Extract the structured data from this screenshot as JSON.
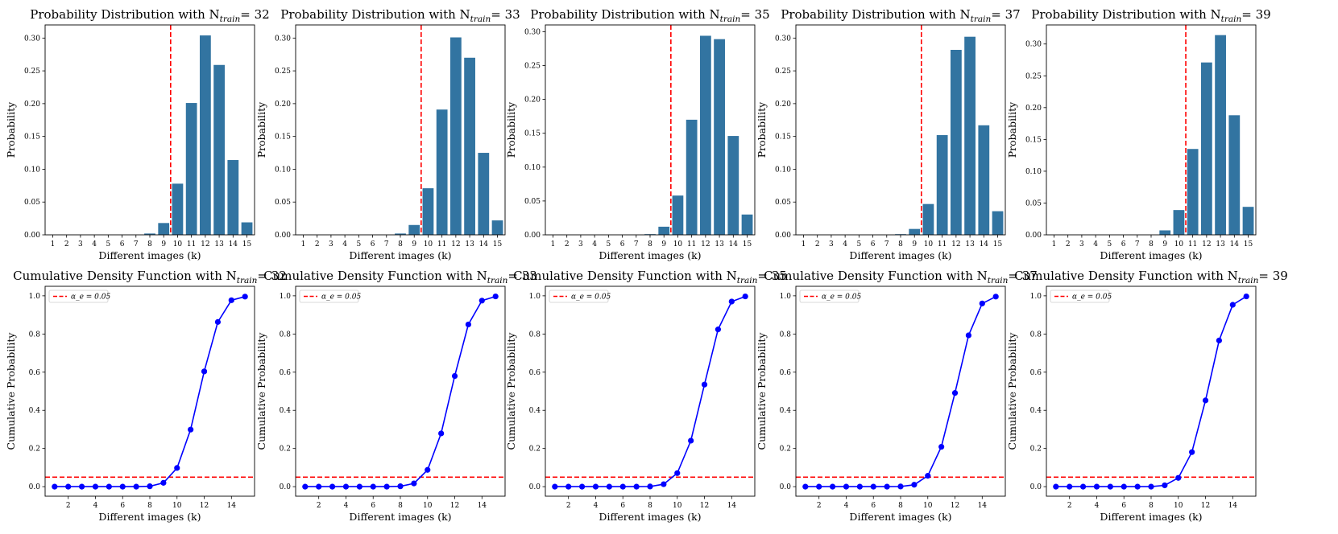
{
  "colors": {
    "bar": "#3274a1",
    "line": "#0000ff",
    "threshold": "#ff0000",
    "axes": "#000000",
    "legend_border": "#cccccc"
  },
  "chart_data": [
    {
      "type": "bar",
      "title": "Probability Distribution with N",
      "title_sub": "train",
      "title_suffix": "= 32",
      "xlabel": "Different images (k)",
      "ylabel": "Probability",
      "categories": [
        "1",
        "2",
        "3",
        "4",
        "5",
        "6",
        "7",
        "8",
        "9",
        "10",
        "11",
        "12",
        "13",
        "14",
        "15"
      ],
      "values": [
        0,
        0,
        0,
        0,
        0,
        0,
        0,
        0.002,
        0.018,
        0.078,
        0.201,
        0.304,
        0.259,
        0.114,
        0.019
      ],
      "threshold_x": 9.5,
      "ylim": [
        0,
        0.32
      ],
      "yticks": [
        "0.00",
        "0.05",
        "0.10",
        "0.15",
        "0.20",
        "0.25",
        "0.30"
      ]
    },
    {
      "type": "bar",
      "title": "Probability Distribution with N",
      "title_sub": "train",
      "title_suffix": "= 33",
      "xlabel": "Different images (k)",
      "ylabel": "Probability",
      "categories": [
        "1",
        "2",
        "3",
        "4",
        "5",
        "6",
        "7",
        "8",
        "9",
        "10",
        "11",
        "12",
        "13",
        "14",
        "15"
      ],
      "values": [
        0,
        0,
        0,
        0,
        0,
        0,
        0,
        0.002,
        0.015,
        0.071,
        0.191,
        0.301,
        0.27,
        0.125,
        0.022
      ],
      "threshold_x": 9.5,
      "ylim": [
        0,
        0.32
      ],
      "yticks": [
        "0.00",
        "0.05",
        "0.10",
        "0.15",
        "0.20",
        "0.25",
        "0.30"
      ]
    },
    {
      "type": "bar",
      "title": "Probability Distribution with N",
      "title_sub": "train",
      "title_suffix": "= 35",
      "xlabel": "Different images (k)",
      "ylabel": "Probability",
      "categories": [
        "1",
        "2",
        "3",
        "4",
        "5",
        "6",
        "7",
        "8",
        "9",
        "10",
        "11",
        "12",
        "13",
        "14",
        "15"
      ],
      "values": [
        0,
        0,
        0,
        0,
        0,
        0,
        0,
        0.001,
        0.012,
        0.058,
        0.17,
        0.294,
        0.289,
        0.146,
        0.03
      ],
      "threshold_x": 9.5,
      "ylim": [
        0,
        0.31
      ],
      "yticks": [
        "0.00",
        "0.05",
        "0.10",
        "0.15",
        "0.20",
        "0.25",
        "0.30"
      ]
    },
    {
      "type": "bar",
      "title": "Probability Distribution with N",
      "title_sub": "train",
      "title_suffix": "= 37",
      "xlabel": "Different images (k)",
      "ylabel": "Probability",
      "categories": [
        "1",
        "2",
        "3",
        "4",
        "5",
        "6",
        "7",
        "8",
        "9",
        "10",
        "11",
        "12",
        "13",
        "14",
        "15"
      ],
      "values": [
        0,
        0,
        0,
        0,
        0,
        0,
        0,
        0.001,
        0.009,
        0.047,
        0.152,
        0.282,
        0.302,
        0.167,
        0.036
      ],
      "threshold_x": 9.5,
      "ylim": [
        0,
        0.32
      ],
      "yticks": [
        "0.00",
        "0.05",
        "0.10",
        "0.15",
        "0.20",
        "0.25",
        "0.30"
      ]
    },
    {
      "type": "bar",
      "title": "Probability Distribution with N",
      "title_sub": "train",
      "title_suffix": "= 39",
      "xlabel": "Different images (k)",
      "ylabel": "Probability",
      "categories": [
        "1",
        "2",
        "3",
        "4",
        "5",
        "6",
        "7",
        "8",
        "9",
        "10",
        "11",
        "12",
        "13",
        "14",
        "15"
      ],
      "values": [
        0,
        0,
        0,
        0,
        0,
        0,
        0,
        0,
        0.007,
        0.039,
        0.135,
        0.271,
        0.314,
        0.188,
        0.044
      ],
      "threshold_x": 10.5,
      "ylim": [
        0,
        0.33
      ],
      "yticks": [
        "0.00",
        "0.05",
        "0.10",
        "0.15",
        "0.20",
        "0.25",
        "0.30"
      ]
    },
    {
      "type": "line",
      "title": "Cumulative Density Function with N",
      "title_sub": "train",
      "title_suffix": "= 32",
      "xlabel": "Different images (k)",
      "ylabel": "Cumulative Probability",
      "x": [
        1,
        2,
        3,
        4,
        5,
        6,
        7,
        8,
        9,
        10,
        11,
        12,
        13,
        14,
        15
      ],
      "values": [
        0,
        0,
        0,
        0,
        0,
        0,
        0,
        0.002,
        0.02,
        0.098,
        0.299,
        0.604,
        0.863,
        0.977,
        0.996
      ],
      "threshold_y": 0.05,
      "legend": "α_e = 0.05",
      "legend_position": "upper-left",
      "xlim": [
        0.3,
        15.7
      ],
      "ylim": [
        -0.05,
        1.05
      ],
      "xticks": [
        "2",
        "4",
        "6",
        "8",
        "10",
        "12",
        "14"
      ],
      "yticks": [
        "0.0",
        "0.2",
        "0.4",
        "0.6",
        "0.8",
        "1.0"
      ]
    },
    {
      "type": "line",
      "title": "Cumulative Density Function with N",
      "title_sub": "train",
      "title_suffix": "= 33",
      "xlabel": "Different images (k)",
      "ylabel": "Cumulative Probability",
      "x": [
        1,
        2,
        3,
        4,
        5,
        6,
        7,
        8,
        9,
        10,
        11,
        12,
        13,
        14,
        15
      ],
      "values": [
        0,
        0,
        0,
        0,
        0,
        0,
        0,
        0.002,
        0.017,
        0.088,
        0.279,
        0.58,
        0.85,
        0.975,
        0.997
      ],
      "threshold_y": 0.05,
      "legend": "α_e = 0.05",
      "legend_position": "upper-left",
      "xlim": [
        0.3,
        15.7
      ],
      "ylim": [
        -0.05,
        1.05
      ],
      "xticks": [
        "2",
        "4",
        "6",
        "8",
        "10",
        "12",
        "14"
      ],
      "yticks": [
        "0.0",
        "0.2",
        "0.4",
        "0.6",
        "0.8",
        "1.0"
      ]
    },
    {
      "type": "line",
      "title": "Cumulative Density Function with N",
      "title_sub": "train",
      "title_suffix": "= 35",
      "xlabel": "Different images (k)",
      "ylabel": "Cumulative Probability",
      "x": [
        1,
        2,
        3,
        4,
        5,
        6,
        7,
        8,
        9,
        10,
        11,
        12,
        13,
        14,
        15
      ],
      "values": [
        0,
        0,
        0,
        0,
        0,
        0,
        0,
        0.001,
        0.013,
        0.071,
        0.241,
        0.535,
        0.824,
        0.97,
        0.997
      ],
      "threshold_y": 0.05,
      "legend": "α_e = 0.05",
      "legend_position": "upper-left",
      "xlim": [
        0.3,
        15.7
      ],
      "ylim": [
        -0.05,
        1.05
      ],
      "xticks": [
        "2",
        "4",
        "6",
        "8",
        "10",
        "12",
        "14"
      ],
      "yticks": [
        "0.0",
        "0.2",
        "0.4",
        "0.6",
        "0.8",
        "1.0"
      ]
    },
    {
      "type": "line",
      "title": "Cumulative Density Function with N",
      "title_sub": "train",
      "title_suffix": "= 37",
      "xlabel": "Different images (k)",
      "ylabel": "Cumulative Probability",
      "x": [
        1,
        2,
        3,
        4,
        5,
        6,
        7,
        8,
        9,
        10,
        11,
        12,
        13,
        14,
        15
      ],
      "values": [
        0,
        0,
        0,
        0,
        0,
        0,
        0,
        0.001,
        0.01,
        0.057,
        0.209,
        0.491,
        0.793,
        0.96,
        0.996
      ],
      "threshold_y": 0.05,
      "legend": "α_e = 0.05",
      "legend_position": "upper-left",
      "xlim": [
        0.3,
        15.7
      ],
      "ylim": [
        -0.05,
        1.05
      ],
      "xticks": [
        "2",
        "4",
        "6",
        "8",
        "10",
        "12",
        "14"
      ],
      "yticks": [
        "0.0",
        "0.2",
        "0.4",
        "0.6",
        "0.8",
        "1.0"
      ]
    },
    {
      "type": "line",
      "title": "Cumulative Density Function with N",
      "title_sub": "train",
      "title_suffix": "= 39",
      "xlabel": "Different images (k)",
      "ylabel": "Cumulative Probability",
      "x": [
        1,
        2,
        3,
        4,
        5,
        6,
        7,
        8,
        9,
        10,
        11,
        12,
        13,
        14,
        15
      ],
      "values": [
        0,
        0,
        0,
        0,
        0,
        0,
        0,
        0,
        0.007,
        0.046,
        0.181,
        0.452,
        0.766,
        0.953,
        0.997
      ],
      "threshold_y": 0.05,
      "legend": "α_e = 0.05",
      "legend_position": "upper-left",
      "xlim": [
        0.3,
        15.7
      ],
      "ylim": [
        -0.05,
        1.05
      ],
      "xticks": [
        "2",
        "4",
        "6",
        "8",
        "10",
        "12",
        "14"
      ],
      "yticks": [
        "0.0",
        "0.2",
        "0.4",
        "0.6",
        "0.8",
        "1.0"
      ]
    }
  ]
}
